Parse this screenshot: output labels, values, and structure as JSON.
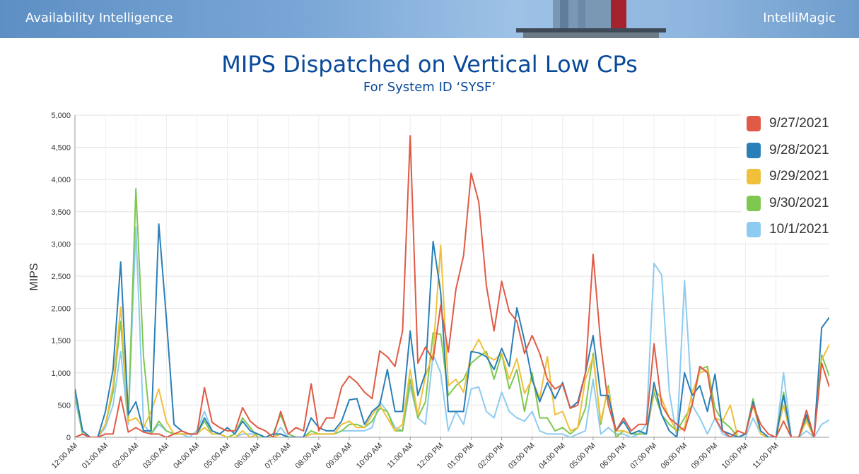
{
  "header": {
    "left_brand": "Availability Intelligence",
    "right_brand": "IntelliMagic"
  },
  "chart_data": {
    "type": "line",
    "title": "MIPS Dispatched on Vertical Low CPs",
    "subtitle": "For System ID ‘SYSF’",
    "ylabel": "MIPS",
    "xlabel": "",
    "ylim": [
      0,
      5000
    ],
    "yticks": [
      "0",
      "500",
      "1,000",
      "1,500",
      "2,000",
      "2,500",
      "3,000",
      "3,500",
      "4,000",
      "4,500",
      "5,000"
    ],
    "xticks": [
      "12:00 AM",
      "01:00 AM",
      "02:00 AM",
      "03:00 AM",
      "04:00 AM",
      "05:00 AM",
      "06:00 AM",
      "07:00 AM",
      "08:00 AM",
      "09:00 AM",
      "10:00 AM",
      "11:00 AM",
      "12:00 PM",
      "01:00 PM",
      "02:00 PM",
      "03:00 PM",
      "04:00 PM",
      "05:00 PM",
      "06:00 PM",
      "07:00 PM",
      "08:00 PM",
      "09:00 PM",
      "10:00 PM",
      "11:00 PM"
    ],
    "x_interval_minutes": 15,
    "grid": true,
    "legend_position": "top-right",
    "series": [
      {
        "name": "9/27/2021",
        "color": "#e05a45",
        "values": [
          0,
          50,
          0,
          0,
          50,
          50,
          630,
          80,
          150,
          80,
          50,
          50,
          0,
          50,
          100,
          50,
          50,
          770,
          230,
          150,
          100,
          100,
          460,
          250,
          150,
          100,
          0,
          400,
          50,
          150,
          100,
          830,
          100,
          300,
          300,
          780,
          950,
          850,
          700,
          600,
          1340,
          1250,
          1100,
          1650,
          4680,
          1150,
          1400,
          1200,
          2050,
          1320,
          2300,
          2820,
          4100,
          3650,
          2350,
          1650,
          2420,
          1950,
          1800,
          1300,
          1580,
          1300,
          900,
          750,
          820,
          450,
          500,
          1000,
          2840,
          1450,
          500,
          100,
          300,
          100,
          200,
          200,
          1450,
          500,
          300,
          200,
          100,
          500,
          1100,
          1000,
          300,
          100,
          0,
          100,
          50,
          500,
          200,
          50,
          0,
          250,
          0,
          0,
          420,
          0,
          1150,
          780
        ]
      },
      {
        "name": "9/28/2021",
        "color": "#2a7fb8",
        "values": [
          750,
          100,
          0,
          0,
          400,
          1050,
          2720,
          350,
          550,
          100,
          100,
          3310,
          1850,
          200,
          100,
          50,
          50,
          300,
          100,
          50,
          150,
          50,
          250,
          100,
          50,
          0,
          50,
          50,
          0,
          0,
          0,
          300,
          150,
          100,
          100,
          250,
          580,
          600,
          200,
          400,
          500,
          1050,
          400,
          400,
          1650,
          650,
          1000,
          3040,
          2250,
          400,
          400,
          400,
          1330,
          1310,
          1250,
          1050,
          1380,
          1100,
          2010,
          1500,
          900,
          550,
          850,
          600,
          850,
          450,
          550,
          1000,
          1580,
          650,
          650,
          100,
          250,
          50,
          100,
          50,
          850,
          350,
          100,
          0,
          1000,
          650,
          800,
          400,
          980,
          100,
          50,
          0,
          50,
          550,
          100,
          0,
          0,
          650,
          0,
          0,
          350,
          0,
          1700,
          1860
        ]
      },
      {
        "name": "9/29/2021",
        "color": "#f0c03a",
        "values": [
          750,
          100,
          0,
          0,
          200,
          800,
          2020,
          250,
          300,
          150,
          400,
          750,
          250,
          50,
          50,
          50,
          50,
          150,
          50,
          50,
          0,
          0,
          100,
          0,
          50,
          0,
          0,
          50,
          0,
          0,
          0,
          50,
          50,
          50,
          50,
          200,
          250,
          150,
          150,
          350,
          500,
          300,
          100,
          200,
          1050,
          350,
          950,
          1300,
          2980,
          800,
          900,
          700,
          1300,
          1520,
          1270,
          1200,
          1300,
          900,
          1220,
          680,
          900,
          600,
          1250,
          350,
          400,
          100,
          150,
          900,
          1250,
          250,
          750,
          100,
          100,
          50,
          100,
          50,
          750,
          600,
          300,
          100,
          150,
          700,
          1000,
          1050,
          300,
          250,
          500,
          0,
          50,
          500,
          50,
          0,
          0,
          500,
          0,
          0,
          250,
          0,
          1200,
          1440
        ]
      },
      {
        "name": "9/30/2021",
        "color": "#7ec850",
        "values": [
          700,
          50,
          0,
          0,
          200,
          700,
          1800,
          250,
          3860,
          1250,
          50,
          250,
          100,
          50,
          50,
          50,
          50,
          250,
          50,
          50,
          0,
          50,
          300,
          150,
          0,
          0,
          50,
          350,
          50,
          0,
          0,
          100,
          50,
          50,
          50,
          100,
          200,
          200,
          150,
          250,
          450,
          400,
          100,
          100,
          900,
          300,
          550,
          1620,
          1600,
          650,
          800,
          900,
          1150,
          1250,
          1330,
          900,
          1300,
          750,
          1050,
          400,
          1000,
          300,
          300,
          100,
          150,
          50,
          150,
          450,
          1300,
          200,
          800,
          0,
          100,
          50,
          50,
          50,
          700,
          350,
          200,
          100,
          300,
          500,
          1050,
          1100,
          450,
          250,
          150,
          0,
          50,
          600,
          50,
          0,
          0,
          700,
          0,
          0,
          300,
          0,
          1280,
          950
        ]
      },
      {
        "name": "10/1/2021",
        "color": "#8ecbf0",
        "values": [
          600,
          50,
          0,
          0,
          150,
          500,
          1330,
          200,
          3260,
          200,
          50,
          200,
          100,
          50,
          50,
          0,
          100,
          400,
          100,
          50,
          0,
          0,
          50,
          50,
          50,
          0,
          0,
          150,
          0,
          0,
          0,
          50,
          50,
          50,
          50,
          100,
          100,
          100,
          100,
          150,
          550,
          400,
          150,
          100,
          800,
          300,
          200,
          1280,
          1000,
          100,
          400,
          200,
          750,
          780,
          400,
          300,
          700,
          400,
          300,
          250,
          400,
          100,
          50,
          50,
          50,
          0,
          50,
          100,
          900,
          50,
          150,
          50,
          50,
          0,
          50,
          200,
          2700,
          2520,
          700,
          0,
          2430,
          500,
          300,
          50,
          300,
          50,
          0,
          0,
          0,
          300,
          50,
          0,
          0,
          1000,
          0,
          0,
          100,
          0,
          200,
          270
        ]
      }
    ]
  }
}
